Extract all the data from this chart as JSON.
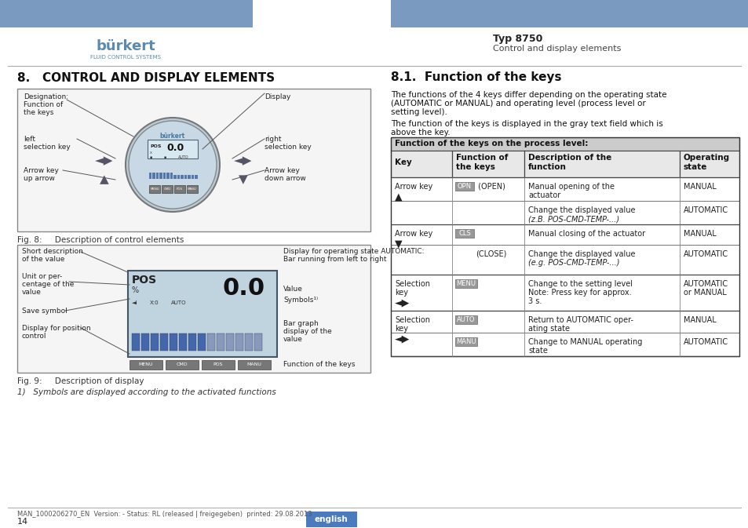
{
  "page_bg": "#ffffff",
  "header_bar_color": "#7a9bbf",
  "burkert_text": "bürkert",
  "burkert_sub": "FLUID CONTROL SYSTEMS",
  "typ_text": "Typ 8750",
  "typ_sub": "Control and display elements",
  "section_title": "8.   CONTROL AND DISPLAY ELEMENTS",
  "section_right_title": "8.1.  Function of the keys",
  "para1_line1": "The functions of the 4 keys differ depending on the operating state",
  "para1_line2": "(AUTOMATIC or MANUAL) and operating level (process level or",
  "para1_line3": "setting level).",
  "para2_line1": "The function of the keys is displayed in the gray text field which is",
  "para2_line2": "above the key.",
  "table_header": "Function of the keys on the process level:",
  "col_headers": [
    "Key",
    "Function of\nthe keys",
    "Description of the\nfunction",
    "Operating\nstate"
  ],
  "footer_text": "MAN_1000206270_EN  Version: - Status: RL (released | freigegeben)  printed: 29.08.2013",
  "page_number": "14",
  "english_badge": "english",
  "english_badge_color": "#4a7bbf",
  "fig8_caption": "Fig. 8:     Description of control elements",
  "fig9_caption": "Fig. 9:     Description of display",
  "footnote": "1)   Symbols are displayed according to the activated functions",
  "table_gray": "#dddddd",
  "table_header_bg": "#cccccc",
  "badge_gray": "#999999"
}
